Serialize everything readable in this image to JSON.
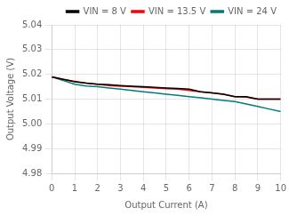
{
  "chart_data": {
    "type": "line",
    "title": "",
    "xlabel": "Output Current (A)",
    "ylabel": "Output Voltage (V)",
    "xlim": [
      0,
      10
    ],
    "ylim": [
      4.98,
      5.04
    ],
    "xticks": [
      0,
      1,
      2,
      3,
      4,
      5,
      6,
      7,
      8,
      9,
      10
    ],
    "yticks": [
      4.98,
      4.99,
      {
        "value": 5,
        "label": "5.00"
      },
      5.01,
      5.02,
      5.03,
      5.04
    ],
    "grid": true,
    "legend": "upper right",
    "x": [
      0,
      0.5,
      1,
      1.5,
      2,
      2.5,
      3,
      3.5,
      4,
      4.5,
      5,
      5.5,
      6,
      6.5,
      7,
      7.5,
      8,
      8.5,
      9,
      9.5,
      10
    ],
    "series": [
      {
        "name": "VIN = 8 V",
        "color": "#000000",
        "values": [
          5.019,
          5.018,
          5.017,
          5.0165,
          5.016,
          5.0158,
          5.0155,
          5.0152,
          5.015,
          5.0148,
          5.0145,
          5.0143,
          5.014,
          5.013,
          5.0125,
          5.012,
          5.011,
          5.011,
          5.01,
          5.01,
          5.01
        ]
      },
      {
        "name": "VIN = 13.5 V",
        "color": "#ff0000",
        "values": [
          5.019,
          5.018,
          5.0172,
          5.0165,
          5.016,
          5.0155,
          5.0152,
          5.015,
          5.0148,
          5.0145,
          5.0142,
          5.014,
          5.0135,
          5.013,
          5.0125,
          5.012,
          5.011,
          5.0108,
          5.01,
          5.01,
          5.01
        ]
      },
      {
        "name": "VIN = 24 V",
        "color": "#007b7b",
        "values": [
          5.019,
          5.0175,
          5.016,
          5.0153,
          5.015,
          5.0145,
          5.014,
          5.0135,
          5.013,
          5.0125,
          5.012,
          5.0115,
          5.011,
          5.0105,
          5.01,
          5.0095,
          5.009,
          5.008,
          5.007,
          5.006,
          5.005
        ]
      }
    ]
  }
}
